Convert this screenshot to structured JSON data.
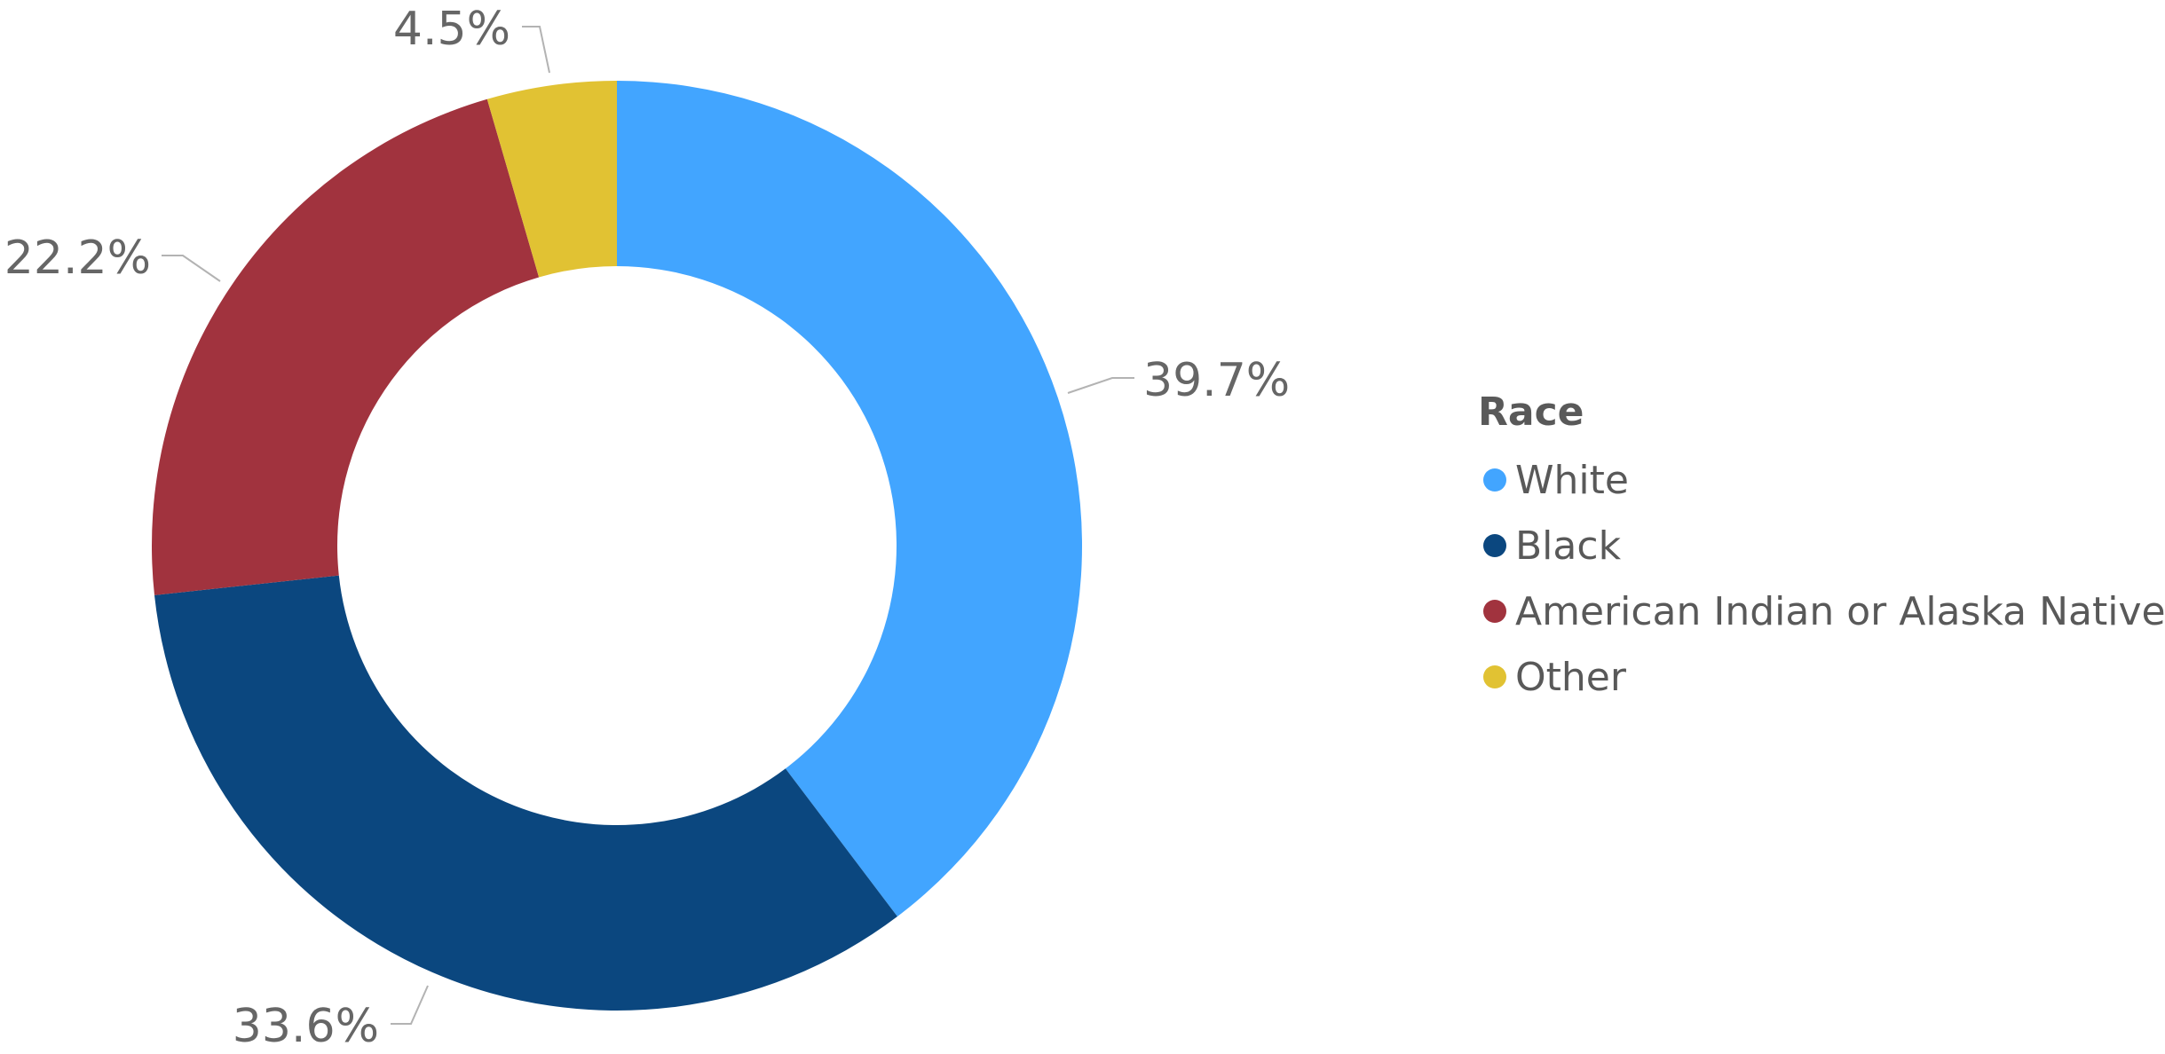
{
  "chart_data": {
    "type": "pie",
    "variant": "donut",
    "legend_title": "Race",
    "legend_position": "right",
    "categories": [
      "White",
      "Black",
      "American Indian or Alaska Native",
      "Other"
    ],
    "values": [
      39.7,
      33.6,
      22.2,
      4.5
    ],
    "value_labels": [
      "39.7%",
      "33.6%",
      "22.2%",
      "4.5%"
    ],
    "colors": [
      "#42a5ff",
      "#0b477f",
      "#a1333e",
      "#e1c233"
    ]
  }
}
